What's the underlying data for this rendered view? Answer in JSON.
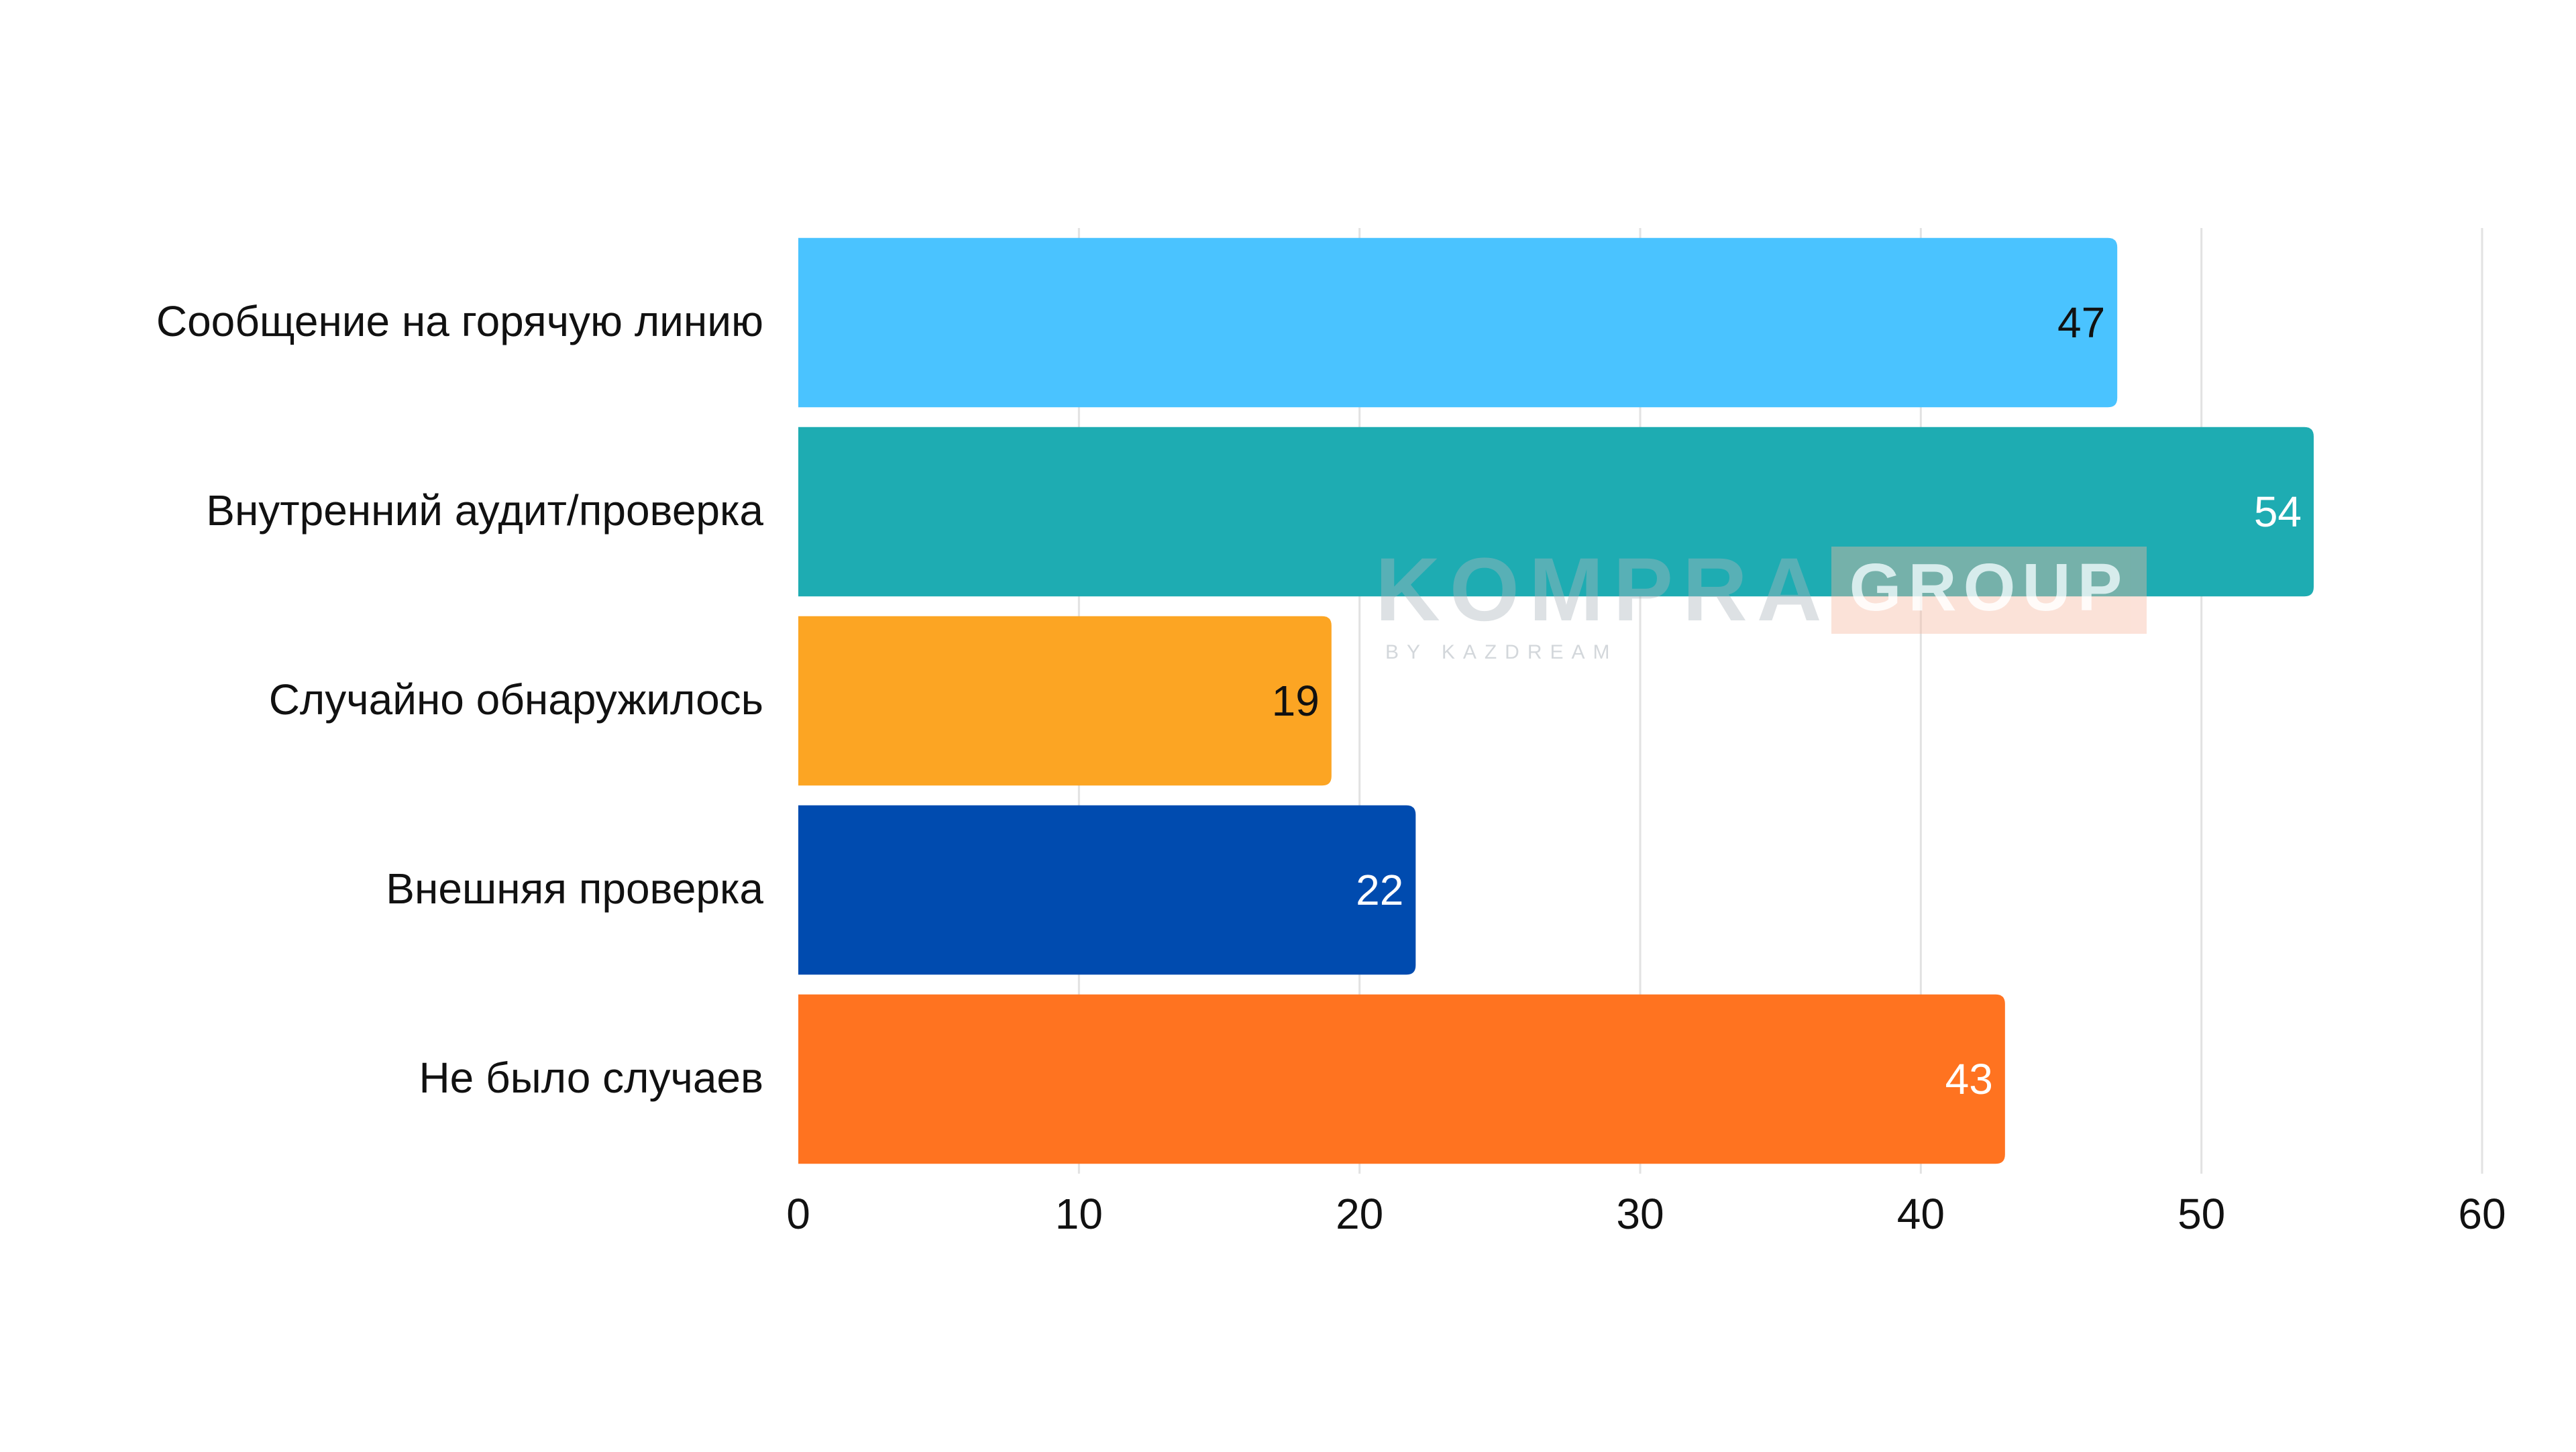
{
  "chart_data": {
    "type": "bar",
    "orientation": "horizontal",
    "categories": [
      "Сообщение на горячую линию",
      "Внутренний аудит/проверка",
      "Случайно обнаружилось",
      "Внешняя проверка",
      "Не было случаев"
    ],
    "values": [
      47,
      54,
      19,
      22,
      43
    ],
    "bar_colors": [
      "#4AC3FF",
      "#1EACB2",
      "#FCA523",
      "#004BAF",
      "#FF7320"
    ],
    "data_label_colors": [
      "#111111",
      "#ffffff",
      "#111111",
      "#ffffff",
      "#ffffff"
    ],
    "x_ticks": [
      0,
      10,
      20,
      30,
      40,
      50,
      60
    ],
    "xlim": [
      0,
      60
    ],
    "grid": true,
    "legend": "none",
    "title": "",
    "xlabel": "",
    "ylabel": ""
  },
  "watermark": {
    "brand": "KOMPRA",
    "brand_box": "GROUP",
    "tagline": "BY KAZDREAM"
  }
}
